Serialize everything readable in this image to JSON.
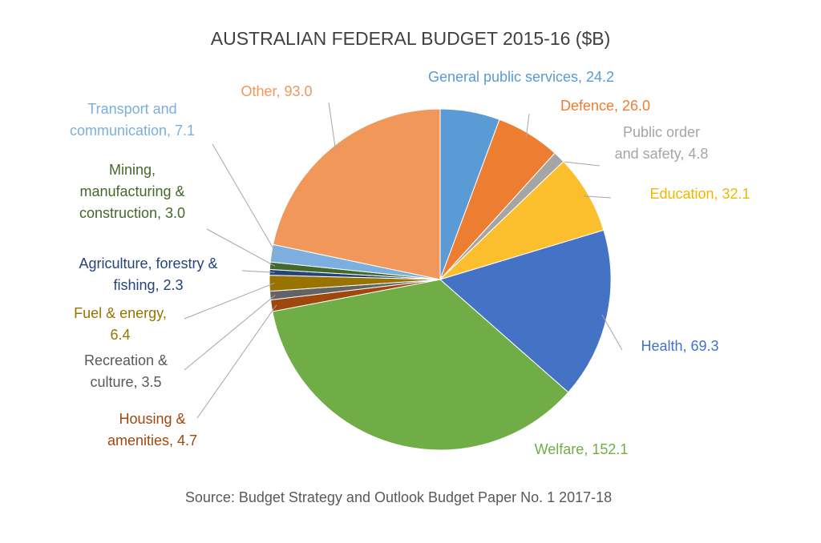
{
  "chart_data": {
    "type": "pie",
    "title": "AUSTRALIAN FEDERAL BUDGET 2015-16 ($B)",
    "source": "Source: Budget Strategy and Outlook Budget Paper No. 1 2017-18",
    "labels": [
      [
        "General public services, 24.2"
      ],
      [
        "Defence, 26.0"
      ],
      [
        "Public order",
        "and safety, 4.8"
      ],
      [
        "Education, 32.1"
      ],
      [
        "Health, 69.3"
      ],
      [
        "Welfare, 152.1"
      ],
      [
        "Housing &",
        "amenities, 4.7"
      ],
      [
        "Recreation &",
        "culture, 3.5"
      ],
      [
        "Fuel & energy,",
        "6.4"
      ],
      [
        "Agriculture, forestry &",
        "fishing, 2.3"
      ],
      [
        "Mining,",
        "manufacturing &",
        "construction, 3.0"
      ],
      [
        "Transport and",
        "communication, 7.1"
      ],
      [
        "Other, 93.0"
      ]
    ],
    "values": [
      24.2,
      26.0,
      4.8,
      32.1,
      69.3,
      152.1,
      4.7,
      3.5,
      6.4,
      2.3,
      3.0,
      7.1,
      93.0
    ],
    "colors": [
      "#5b9bd5",
      "#ed7d31",
      "#a5a5a5",
      "#fbbf2d",
      "#4472c4",
      "#70ad47",
      "#9e480e",
      "#636363",
      "#997300",
      "#264478",
      "#43682b",
      "#7cafdd",
      "#f1975a"
    ]
  }
}
